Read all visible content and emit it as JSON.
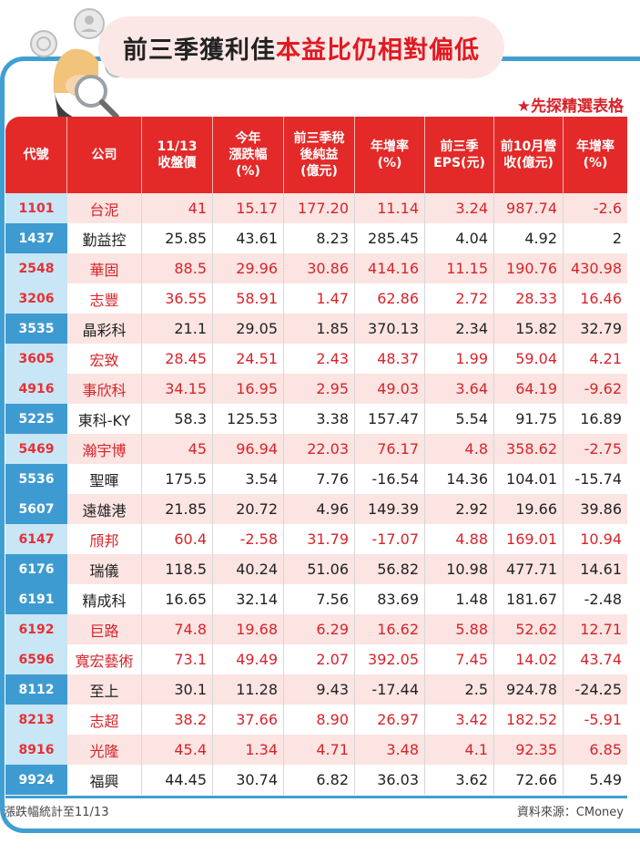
{
  "title": {
    "part1": "前三季獲利佳",
    "part2": "本益比仍相對偏低"
  },
  "subtitle": "★先探精選表格",
  "colors": {
    "header_red": "#e32a29",
    "code_blue": "#3e9bd1",
    "highlight_red": "#d8232a",
    "stripe_pink": "#fbe4e1",
    "frame_blue": "#3f9fd2"
  },
  "table": {
    "headers": [
      "代號",
      "公司",
      "11/13\n收盤價",
      "今年\n漲跌幅\n(%)",
      "前三季稅\n後純益\n(億元)",
      "年增率\n(%)",
      "前三季\nEPS(元)",
      "前10月營\n收(億元)",
      "年增率\n(%)"
    ],
    "rows": [
      {
        "code": "1101",
        "name": "台泥",
        "close": "41",
        "ytd": "15.17",
        "profit": "177.20",
        "growth": "11.14",
        "eps": "3.24",
        "rev": "987.74",
        "rev_growth": "-2.6",
        "red": true
      },
      {
        "code": "1437",
        "name": "勤益控",
        "close": "25.85",
        "ytd": "43.61",
        "profit": "8.23",
        "growth": "285.45",
        "eps": "4.04",
        "rev": "4.92",
        "rev_growth": "2",
        "red": false
      },
      {
        "code": "2548",
        "name": "華固",
        "close": "88.5",
        "ytd": "29.96",
        "profit": "30.86",
        "growth": "414.16",
        "eps": "11.15",
        "rev": "190.76",
        "rev_growth": "430.98",
        "red": true
      },
      {
        "code": "3206",
        "name": "志豐",
        "close": "36.55",
        "ytd": "58.91",
        "profit": "1.47",
        "growth": "62.86",
        "eps": "2.72",
        "rev": "28.33",
        "rev_growth": "16.46",
        "red": true
      },
      {
        "code": "3535",
        "name": "晶彩科",
        "close": "21.1",
        "ytd": "29.05",
        "profit": "1.85",
        "growth": "370.13",
        "eps": "2.34",
        "rev": "15.82",
        "rev_growth": "32.79",
        "red": false
      },
      {
        "code": "3605",
        "name": "宏致",
        "close": "28.45",
        "ytd": "24.51",
        "profit": "2.43",
        "growth": "48.37",
        "eps": "1.99",
        "rev": "59.04",
        "rev_growth": "4.21",
        "red": true
      },
      {
        "code": "4916",
        "name": "事欣科",
        "close": "34.15",
        "ytd": "16.95",
        "profit": "2.95",
        "growth": "49.03",
        "eps": "3.64",
        "rev": "64.19",
        "rev_growth": "-9.62",
        "red": true
      },
      {
        "code": "5225",
        "name": "東科-KY",
        "close": "58.3",
        "ytd": "125.53",
        "profit": "3.38",
        "growth": "157.47",
        "eps": "5.54",
        "rev": "91.75",
        "rev_growth": "16.89",
        "red": false
      },
      {
        "code": "5469",
        "name": "瀚宇博",
        "close": "45",
        "ytd": "96.94",
        "profit": "22.03",
        "growth": "76.17",
        "eps": "4.8",
        "rev": "358.62",
        "rev_growth": "-2.75",
        "red": true
      },
      {
        "code": "5536",
        "name": "聖暉",
        "close": "175.5",
        "ytd": "3.54",
        "profit": "7.76",
        "growth": "-16.54",
        "eps": "14.36",
        "rev": "104.01",
        "rev_growth": "-15.74",
        "red": false
      },
      {
        "code": "5607",
        "name": "遠雄港",
        "close": "21.85",
        "ytd": "20.72",
        "profit": "4.96",
        "growth": "149.39",
        "eps": "2.92",
        "rev": "19.66",
        "rev_growth": "39.86",
        "red": false
      },
      {
        "code": "6147",
        "name": "頎邦",
        "close": "60.4",
        "ytd": "-2.58",
        "profit": "31.79",
        "growth": "-17.07",
        "eps": "4.88",
        "rev": "169.01",
        "rev_growth": "10.94",
        "red": true
      },
      {
        "code": "6176",
        "name": "瑞儀",
        "close": "118.5",
        "ytd": "40.24",
        "profit": "51.06",
        "growth": "56.82",
        "eps": "10.98",
        "rev": "477.71",
        "rev_growth": "14.61",
        "red": false
      },
      {
        "code": "6191",
        "name": "精成科",
        "close": "16.65",
        "ytd": "32.14",
        "profit": "7.56",
        "growth": "83.69",
        "eps": "1.48",
        "rev": "181.67",
        "rev_growth": "-2.48",
        "red": false
      },
      {
        "code": "6192",
        "name": "巨路",
        "close": "74.8",
        "ytd": "19.68",
        "profit": "6.29",
        "growth": "16.62",
        "eps": "5.88",
        "rev": "52.62",
        "rev_growth": "12.71",
        "red": true
      },
      {
        "code": "6596",
        "name": "寬宏藝術",
        "close": "73.1",
        "ytd": "49.49",
        "profit": "2.07",
        "growth": "392.05",
        "eps": "7.45",
        "rev": "14.02",
        "rev_growth": "43.74",
        "red": true
      },
      {
        "code": "8112",
        "name": "至上",
        "close": "30.1",
        "ytd": "11.28",
        "profit": "9.43",
        "growth": "-17.44",
        "eps": "2.5",
        "rev": "924.78",
        "rev_growth": "-24.25",
        "red": false
      },
      {
        "code": "8213",
        "name": "志超",
        "close": "38.2",
        "ytd": "37.66",
        "profit": "8.90",
        "growth": "26.97",
        "eps": "3.42",
        "rev": "182.52",
        "rev_growth": "-5.91",
        "red": true
      },
      {
        "code": "8916",
        "name": "光隆",
        "close": "45.4",
        "ytd": "1.34",
        "profit": "4.71",
        "growth": "3.48",
        "eps": "4.1",
        "rev": "92.35",
        "rev_growth": "6.85",
        "red": true
      },
      {
        "code": "9924",
        "name": "福興",
        "close": "44.45",
        "ytd": "30.74",
        "profit": "6.82",
        "growth": "36.03",
        "eps": "3.62",
        "rev": "72.66",
        "rev_growth": "5.49",
        "red": false
      }
    ]
  },
  "footnote": "漲跌幅統計至11/13",
  "source": "資料來源：CMoney"
}
